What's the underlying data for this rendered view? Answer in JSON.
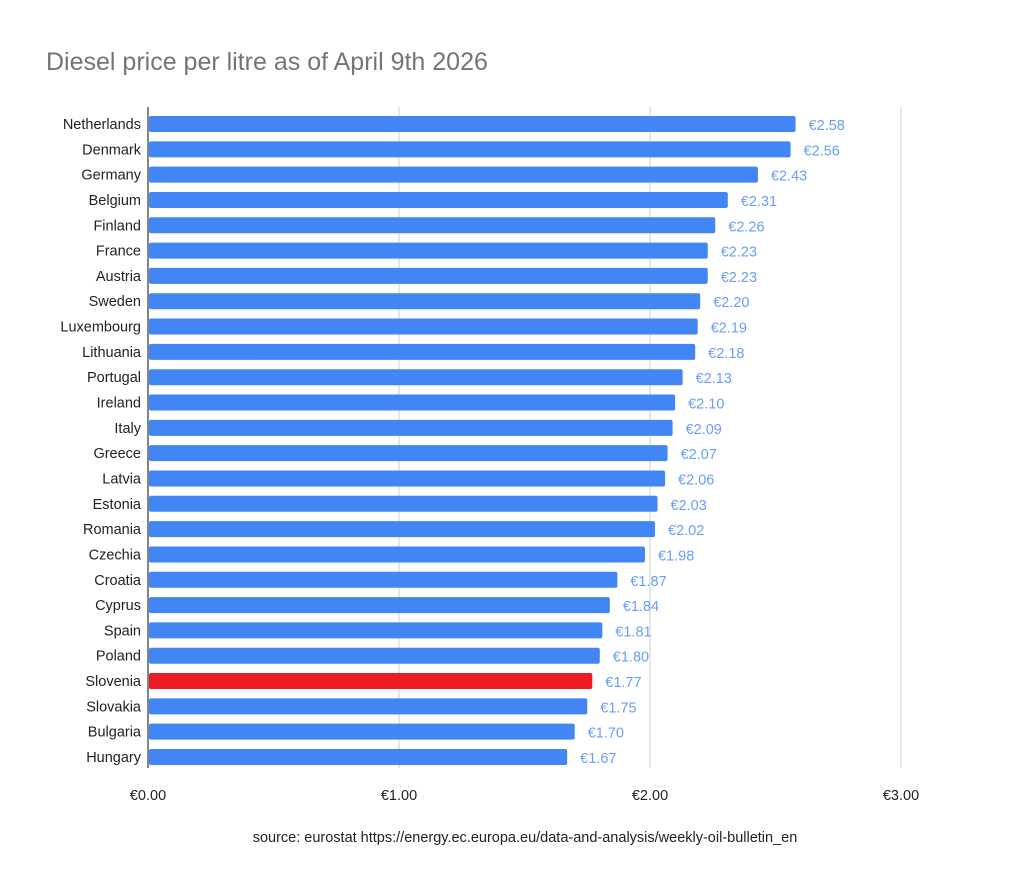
{
  "chart_data": {
    "type": "bar",
    "orientation": "horizontal",
    "title": "Diesel price per litre as of April 9th 2026",
    "categories": [
      "Netherlands",
      "Denmark",
      "Germany",
      "Belgium",
      "Finland",
      "France",
      "Austria",
      "Sweden",
      "Luxembourg",
      "Lithuania",
      "Portugal",
      "Ireland",
      "Italy",
      "Greece",
      "Latvia",
      "Estonia",
      "Romania",
      "Czechia",
      "Croatia",
      "Cyprus",
      "Spain",
      "Poland",
      "Slovenia",
      "Slovakia",
      "Bulgaria",
      "Hungary"
    ],
    "values": [
      2.58,
      2.56,
      2.43,
      2.31,
      2.26,
      2.23,
      2.23,
      2.2,
      2.19,
      2.18,
      2.13,
      2.1,
      2.09,
      2.07,
      2.06,
      2.03,
      2.02,
      1.98,
      1.87,
      1.84,
      1.81,
      1.8,
      1.77,
      1.75,
      1.7,
      1.67
    ],
    "data_labels": [
      "€2.58",
      "€2.56",
      "€2.43",
      "€2.31",
      "€2.26",
      "€2.23",
      "€2.23",
      "€2.20",
      "€2.19",
      "€2.18",
      "€2.13",
      "€2.10",
      "€2.09",
      "€2.07",
      "€2.06",
      "€2.03",
      "€2.02",
      "€1.98",
      "€1.87",
      "€1.84",
      "€1.81",
      "€1.80",
      "€1.77",
      "€1.75",
      "€1.70",
      "€1.67"
    ],
    "highlight": "Slovenia",
    "xlim": [
      0,
      3
    ],
    "xticks": [
      0,
      1,
      2,
      3
    ],
    "xtick_labels": [
      "€0.00",
      "€1.00",
      "€2.00",
      "€3.00"
    ],
    "xlabel": "",
    "ylabel": "",
    "grid": true,
    "legend": "none",
    "colors": {
      "bar": "#4285f4",
      "highlight": "#ed1c24",
      "data_label": "#6a9ef5",
      "title": "#757575"
    },
    "footnote": "source: eurostat https://energy.ec.europa.eu/data-and-analysis/weekly-oil-bulletin_en"
  }
}
